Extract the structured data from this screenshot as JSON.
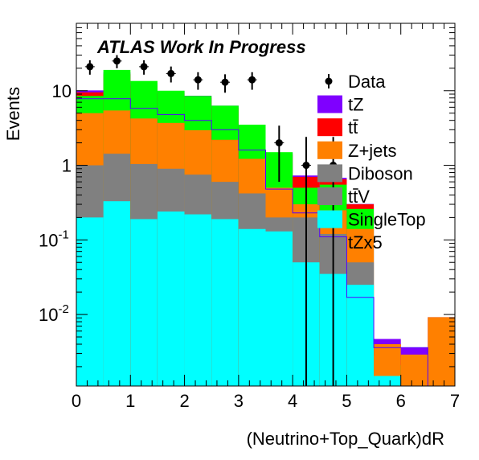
{
  "chart_data": {
    "type": "bar",
    "stacked": true,
    "log_y": true,
    "annotation": "ATLAS Work In Progress",
    "xlabel": "(Neutrino+Top_Quark)dR",
    "ylabel": "Events",
    "xlim": [
      0,
      7
    ],
    "ylim": [
      0.0011,
      80
    ],
    "bin_edges": [
      0,
      0.5,
      1,
      1.5,
      2,
      2.5,
      3,
      3.5,
      4,
      4.5,
      5,
      5.5,
      6,
      6.5,
      7
    ],
    "x_ticks": [
      "0",
      "1",
      "2",
      "3",
      "4",
      "5",
      "6",
      "7"
    ],
    "y_ticks": [
      {
        "value": 0.01,
        "base": "10",
        "exp": "-2"
      },
      {
        "value": 0.1,
        "base": "10",
        "exp": "-1"
      },
      {
        "value": 1,
        "base": "1",
        "exp": ""
      },
      {
        "value": 10,
        "base": "10",
        "exp": ""
      }
    ],
    "stack_order_bottom_to_top": [
      "SingleTop",
      "ttV",
      "Diboson",
      "Z+jets",
      "tt",
      "tZ"
    ],
    "series": [
      {
        "key": "SingleTop",
        "color": "#00ffff",
        "values": [
          0.2,
          0.33,
          0.19,
          0.24,
          0.22,
          0.19,
          0.14,
          0.13,
          0.05,
          0.035,
          0.025,
          0.0015,
          0.0011,
          0.0011
        ]
      },
      {
        "key": "ttV",
        "color": "#808080",
        "values": [
          0.8,
          1.1,
          0.85,
          0.66,
          0.53,
          0.41,
          0.28,
          0.07,
          0.15,
          0.085,
          0.025,
          0.0,
          0.0,
          0.0
        ]
      },
      {
        "key": "Diboson",
        "color": "#888888",
        "values": [
          0,
          0,
          0,
          0,
          0,
          0,
          0,
          0,
          0,
          0,
          0,
          0,
          0,
          0
        ]
      },
      {
        "key": "Z+jets",
        "color": "#ff8000",
        "values": [
          4.0,
          4.0,
          3.2,
          2.8,
          2.2,
          1.6,
          0.8,
          0.3,
          0.1,
          0.13,
          0.09,
          0.0025,
          0.0018,
          0.0081
        ]
      },
      {
        "key": "tt",
        "color": "#ff0000",
        "values": [
          4.5,
          11.2,
          7.5,
          5.5,
          5.1,
          3.7,
          2.0,
          0.9,
          0.4,
          0.4,
          0.16,
          0.0,
          0.0,
          0.0
        ]
      },
      {
        "key": "tZ",
        "color": "#7f00ff",
        "values": [
          0.6,
          1.0,
          0.85,
          0.6,
          0.5,
          0.4,
          0.2,
          0.08,
          0.03,
          0.03,
          0.003,
          0.0007,
          0.0007,
          0.0
        ]
      }
    ],
    "green_overlay": {
      "color": "#00ff00",
      "values": [
        8.5,
        19.0,
        13.5,
        10.0,
        8.5,
        6.3,
        3.5,
        1.5,
        0.5,
        0.55,
        0.26,
        0.0028,
        0.0021,
        0.0
      ]
    },
    "tZx5": {
      "color": "#5500ff",
      "values": [
        7.8,
        7.8,
        5.8,
        4.8,
        4.0,
        3.0,
        1.6,
        0.48,
        0.23,
        0.11,
        0.017,
        0.0036,
        0.0036,
        0.0
      ]
    },
    "data_points": {
      "x": [
        0.25,
        0.75,
        1.25,
        1.75,
        2.25,
        2.75,
        3.25,
        3.75,
        4.25,
        4.75
      ],
      "y": [
        21,
        25,
        21,
        17,
        14,
        13,
        14,
        2,
        1,
        1
      ],
      "err_low": [
        4.6,
        5.0,
        4.6,
        4.1,
        3.7,
        3.6,
        3.7,
        1.4,
        0.999,
        0.999
      ],
      "err_high": [
        4.6,
        5.0,
        4.6,
        4.1,
        3.7,
        3.6,
        3.7,
        1.4,
        1.4,
        1.4
      ]
    },
    "legend": [
      {
        "label": "Data",
        "kind": "marker",
        "color": "#000000"
      },
      {
        "label": "tZ",
        "kind": "box",
        "color": "#7f00ff"
      },
      {
        "label": "tt",
        "overline": "t",
        "kind": "box",
        "color": "#ff0000"
      },
      {
        "label": "Z+jets",
        "kind": "box",
        "color": "#ff8000"
      },
      {
        "label": "Diboson",
        "kind": "box",
        "color": "#808080"
      },
      {
        "label": "ttV",
        "overline": "t",
        "kind": "box",
        "color": "#808080"
      },
      {
        "label": "SingleTop",
        "kind": "box",
        "color": "#00ffff"
      },
      {
        "label": "tZx5",
        "kind": "line",
        "color": "#5500ff"
      }
    ]
  }
}
